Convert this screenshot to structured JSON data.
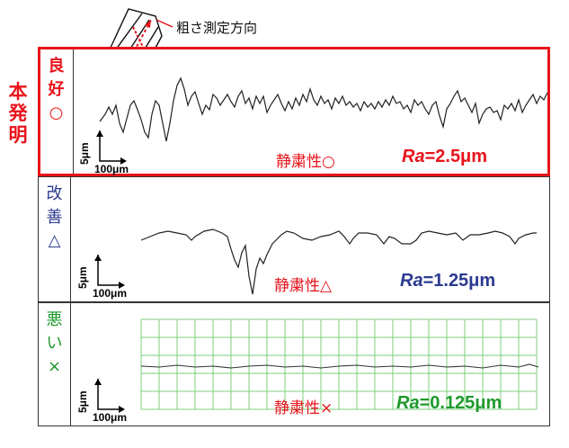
{
  "callout": {
    "text": "粗さ測定方向"
  },
  "side_label": {
    "chars": [
      "本",
      "発",
      "明"
    ],
    "color": "#e8141b"
  },
  "rows": [
    {
      "grade": [
        "良",
        "好",
        "○"
      ],
      "grade_color": "#e8141b",
      "scale_y": "5μm",
      "scale_x": "100μm",
      "silence": "静粛性○",
      "silence_color": "#e8141b",
      "ra_prefix": "Ra",
      "ra_value": "=2.5μm",
      "ra_color": "#e8141b"
    },
    {
      "grade": [
        "改",
        "善",
        "△"
      ],
      "grade_color": "#2b3a8f",
      "scale_y": "5μm",
      "scale_x": "100μm",
      "silence": "静粛性△",
      "silence_color": "#e8141b",
      "ra_prefix": "Ra",
      "ra_value": "=1.25μm",
      "ra_color": "#2b3a8f"
    },
    {
      "grade": [
        "悪",
        "い",
        "×"
      ],
      "grade_color": "#1e9a2c",
      "scale_y": "5μm",
      "scale_x": "100μm",
      "silence": "静粛性×",
      "silence_color": "#e8141b",
      "ra_prefix": "Ra",
      "ra_value": "=0.125μm",
      "ra_color": "#1e9a2c"
    }
  ]
}
